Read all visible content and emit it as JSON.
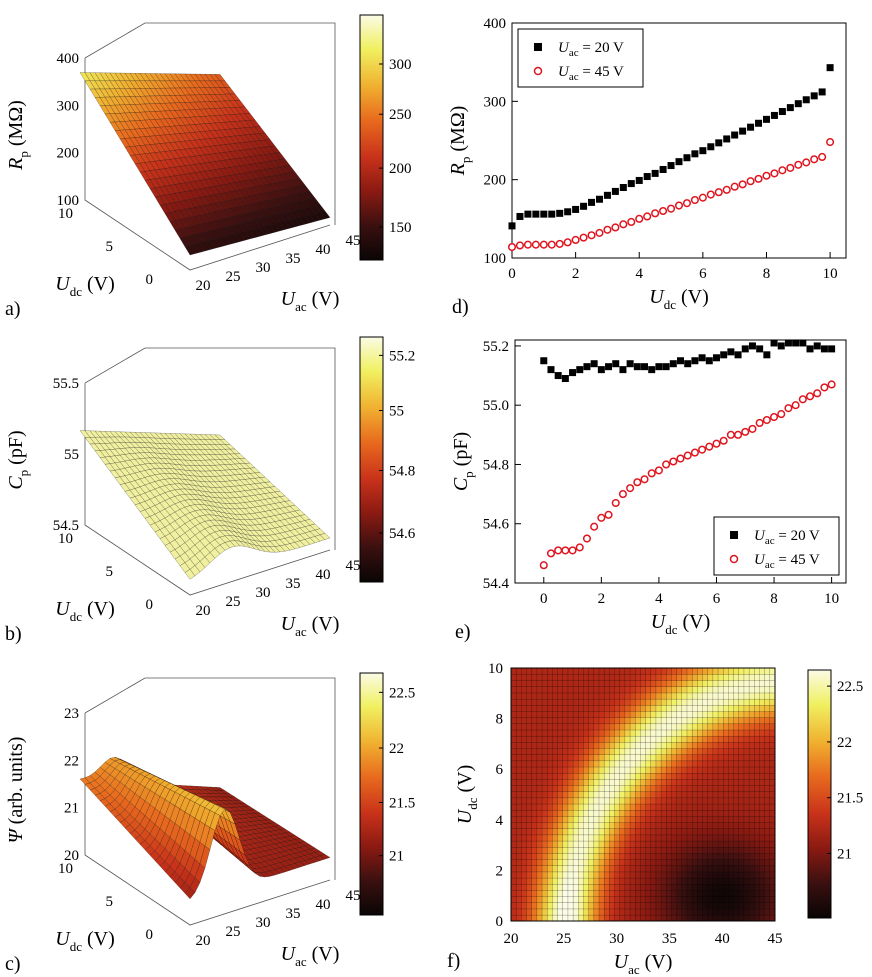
{
  "cmap": {
    "fire": [
      "#0a0505",
      "#3a1010",
      "#8a1a12",
      "#c8321a",
      "#e86a1e",
      "#f0b030",
      "#f0f060",
      "#fbfbe6"
    ]
  },
  "panels": {
    "a": {
      "label": "a)",
      "z_axis": {
        "var": "R",
        "sub": "p",
        "unit": "(MΩ)",
        "ticks": [
          "400",
          "300",
          "200",
          "100"
        ]
      },
      "dc_axis": {
        "var": "U",
        "sub": "dc",
        "unit": "(V)",
        "ticks": [
          "10",
          "5",
          "0"
        ]
      },
      "ac_axis": {
        "var": "U",
        "sub": "ac",
        "unit": "(V)",
        "ticks": [
          "20",
          "25",
          "30",
          "35",
          "40",
          "45"
        ]
      },
      "colorbar_ticks": [
        "300",
        "250",
        "200",
        "150"
      ]
    },
    "b": {
      "label": "b)",
      "z_axis": {
        "var": "C",
        "sub": "p",
        "unit": "(pF)",
        "ticks": [
          "55.5",
          "55",
          "54.5"
        ]
      },
      "dc_axis": {
        "var": "U",
        "sub": "dc",
        "unit": "(V)",
        "ticks": [
          "10",
          "5",
          "0"
        ]
      },
      "ac_axis": {
        "var": "U",
        "sub": "ac",
        "unit": "(V)",
        "ticks": [
          "20",
          "25",
          "30",
          "35",
          "40",
          "45"
        ]
      },
      "colorbar_ticks": [
        "55.2",
        "55",
        "54.8",
        "54.6"
      ]
    },
    "c": {
      "label": "c)",
      "z_axis": {
        "var": "Ψ",
        "sub": "",
        "unit": "(arb. units)",
        "ticks": [
          "23",
          "22",
          "21",
          "20"
        ]
      },
      "dc_axis": {
        "var": "U",
        "sub": "dc",
        "unit": "(V)",
        "ticks": [
          "10",
          "5",
          "0"
        ]
      },
      "ac_axis": {
        "var": "U",
        "sub": "ac",
        "unit": "(V)",
        "ticks": [
          "20",
          "25",
          "30",
          "35",
          "40",
          "45"
        ]
      },
      "colorbar_ticks": [
        "22.5",
        "22",
        "21.5",
        "21"
      ]
    },
    "f": {
      "label": "f)",
      "colorbar_ticks": [
        "22.5",
        "22",
        "21.5",
        "21"
      ]
    }
  },
  "chart_data": [
    {
      "id": "d",
      "label": "d)",
      "type": "scatter",
      "xlabel": {
        "var": "U",
        "sub": "dc",
        "unit": "(V)"
      },
      "ylabel": {
        "var": "R",
        "sub": "p",
        "unit": "(MΩ)"
      },
      "xlim": [
        0,
        10.5
      ],
      "ylim": [
        100,
        400
      ],
      "xticks": [
        0,
        2,
        4,
        6,
        8,
        10
      ],
      "yticks": [
        100,
        200,
        300,
        400
      ],
      "legend": "top-left",
      "x": [
        0,
        0.25,
        0.5,
        0.75,
        1.0,
        1.25,
        1.5,
        1.75,
        2.0,
        2.25,
        2.5,
        2.75,
        3.0,
        3.25,
        3.5,
        3.75,
        4.0,
        4.25,
        4.5,
        4.75,
        5.0,
        5.25,
        5.5,
        5.75,
        6.0,
        6.25,
        6.5,
        6.75,
        7.0,
        7.25,
        7.5,
        7.75,
        8.0,
        8.25,
        8.5,
        8.75,
        9.0,
        9.25,
        9.5,
        9.75,
        10.0
      ],
      "series": [
        {
          "name": "U_ac = 20 V",
          "legend_var": "U",
          "legend_sub": "ac",
          "legend_val": "= 20 V",
          "marker": "square",
          "color": "#000000",
          "values": [
            141,
            153,
            156,
            156,
            156,
            156,
            157,
            159,
            162,
            166,
            171,
            175,
            180,
            185,
            190,
            195,
            199,
            204,
            208,
            213,
            218,
            223,
            228,
            233,
            237,
            242,
            247,
            252,
            257,
            262,
            267,
            272,
            277,
            282,
            287,
            292,
            297,
            302,
            307,
            312,
            343
          ]
        },
        {
          "name": "U_ac = 45 V",
          "legend_var": "U",
          "legend_sub": "ac",
          "legend_val": "= 45 V",
          "marker": "circle",
          "color": "#e0141e",
          "values": [
            114,
            116,
            117,
            117,
            117,
            117,
            118,
            120,
            123,
            126,
            129,
            132,
            136,
            139,
            143,
            146,
            150,
            153,
            157,
            160,
            163,
            167,
            170,
            174,
            177,
            181,
            184,
            187,
            191,
            194,
            198,
            201,
            205,
            208,
            212,
            215,
            219,
            222,
            226,
            229,
            248
          ]
        }
      ]
    },
    {
      "id": "e",
      "label": "e)",
      "type": "scatter",
      "xlabel": {
        "var": "U",
        "sub": "dc",
        "unit": "(V)"
      },
      "ylabel": {
        "var": "C",
        "sub": "p",
        "unit": "(pF)"
      },
      "xlim": [
        -1,
        10.5
      ],
      "ylim": [
        54.4,
        55.22
      ],
      "xticks": [
        0,
        2,
        4,
        6,
        8,
        10
      ],
      "yticks": [
        54.4,
        54.6,
        54.8,
        55.0,
        55.2
      ],
      "legend": "bottom-right",
      "x": [
        0,
        0.25,
        0.5,
        0.75,
        1.0,
        1.25,
        1.5,
        1.75,
        2.0,
        2.25,
        2.5,
        2.75,
        3.0,
        3.25,
        3.5,
        3.75,
        4.0,
        4.25,
        4.5,
        4.75,
        5.0,
        5.25,
        5.5,
        5.75,
        6.0,
        6.25,
        6.5,
        6.75,
        7.0,
        7.25,
        7.5,
        7.75,
        8.0,
        8.25,
        8.5,
        8.75,
        9.0,
        9.25,
        9.5,
        9.75,
        10.0
      ],
      "series": [
        {
          "name": "U_ac = 20 V",
          "legend_var": "U",
          "legend_sub": "ac",
          "legend_val": "= 20 V",
          "marker": "square",
          "color": "#000000",
          "values": [
            55.15,
            55.12,
            55.1,
            55.09,
            55.11,
            55.12,
            55.13,
            55.14,
            55.12,
            55.13,
            55.14,
            55.12,
            55.14,
            55.13,
            55.13,
            55.12,
            55.13,
            55.13,
            55.14,
            55.15,
            55.14,
            55.15,
            55.16,
            55.15,
            55.16,
            55.17,
            55.18,
            55.17,
            55.19,
            55.2,
            55.19,
            55.17,
            55.21,
            55.2,
            55.21,
            55.21,
            55.21,
            55.19,
            55.2,
            55.19,
            55.19
          ]
        },
        {
          "name": "U_ac = 45 V",
          "legend_var": "U",
          "legend_sub": "ac",
          "legend_val": "= 45 V",
          "marker": "circle",
          "color": "#e0141e",
          "values": [
            54.46,
            54.5,
            54.51,
            54.51,
            54.51,
            54.52,
            54.55,
            54.59,
            54.62,
            54.63,
            54.67,
            54.7,
            54.72,
            54.74,
            54.75,
            54.77,
            54.78,
            54.8,
            54.81,
            54.82,
            54.83,
            54.84,
            54.85,
            54.86,
            54.87,
            54.88,
            54.9,
            54.9,
            54.91,
            54.92,
            54.94,
            54.95,
            54.96,
            54.97,
            54.99,
            55.0,
            55.02,
            55.03,
            55.04,
            55.06,
            55.07
          ]
        }
      ]
    },
    {
      "id": "f",
      "label": "f)",
      "type": "heatmap",
      "xlabel": {
        "var": "U",
        "sub": "ac",
        "unit": "(V)"
      },
      "ylabel": {
        "var": "U",
        "sub": "dc",
        "unit": "(V)"
      },
      "xlim": [
        20,
        45
      ],
      "ylim": [
        0,
        10
      ],
      "xticks": [
        20,
        25,
        30,
        35,
        40,
        45
      ],
      "yticks": [
        0,
        2,
        4,
        6,
        8,
        10
      ],
      "zlim": [
        20.5,
        22.7
      ]
    }
  ]
}
